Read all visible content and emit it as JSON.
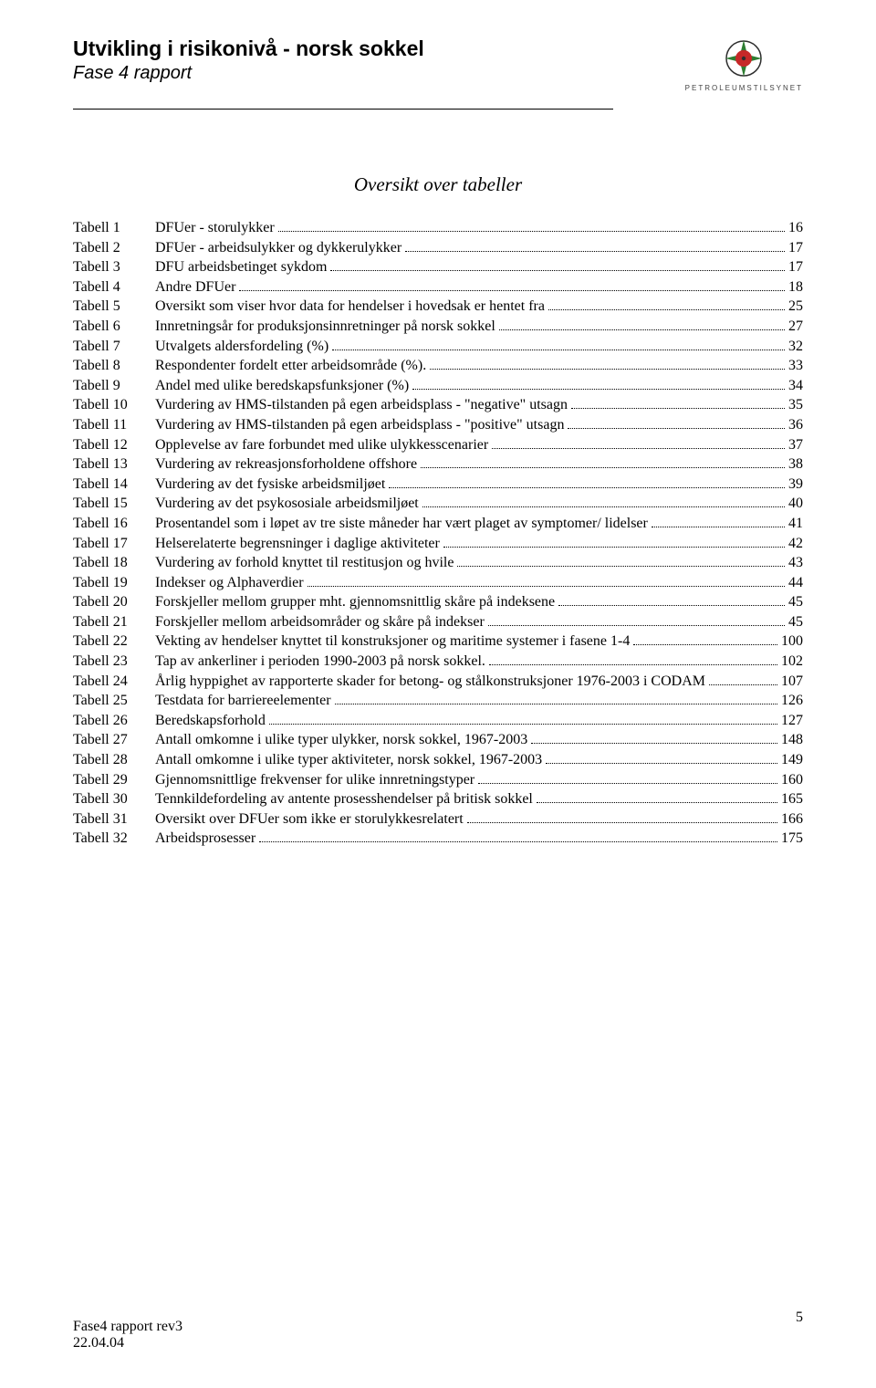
{
  "header": {
    "title": "Utvikling i risikonivå - norsk sokkel",
    "subtitle": "Fase 4 rapport",
    "logo_text": "PETROLEUMSTILSYNET",
    "logo_colors": {
      "center": "#c62828",
      "cross": "#2e7d32",
      "ring": "#2e2e2e"
    }
  },
  "toc": {
    "title": "Oversikt over tabeller",
    "entries": [
      {
        "label": "Tabell 1",
        "desc": "DFUer - storulykker",
        "page": "16"
      },
      {
        "label": "Tabell 2",
        "desc": "DFUer - arbeidsulykker og dykkerulykker",
        "page": "17"
      },
      {
        "label": "Tabell 3",
        "desc": "DFU arbeidsbetinget sykdom",
        "page": "17"
      },
      {
        "label": "Tabell 4",
        "desc": "Andre DFUer",
        "page": "18"
      },
      {
        "label": "Tabell 5",
        "desc": "Oversikt som viser hvor data for hendelser i hovedsak er hentet fra",
        "page": "25"
      },
      {
        "label": "Tabell 6",
        "desc": "Innretningsår for produksjonsinnretninger på norsk sokkel",
        "page": "27"
      },
      {
        "label": "Tabell 7",
        "desc": "Utvalgets aldersfordeling (%)",
        "page": "32"
      },
      {
        "label": "Tabell 8",
        "desc": "Respondenter fordelt etter arbeidsområde (%).",
        "page": "33"
      },
      {
        "label": "Tabell 9",
        "desc": "Andel med ulike beredskapsfunksjoner (%)",
        "page": "34"
      },
      {
        "label": "Tabell 10",
        "desc": "Vurdering av HMS-tilstanden på egen arbeidsplass - \"negative\" utsagn",
        "page": "35"
      },
      {
        "label": "Tabell 11",
        "desc": "Vurdering av HMS-tilstanden på egen arbeidsplass - \"positive\" utsagn",
        "page": "36"
      },
      {
        "label": "Tabell 12",
        "desc": "Opplevelse av fare forbundet med ulike ulykkesscenarier",
        "page": "37"
      },
      {
        "label": "Tabell 13",
        "desc": "Vurdering av rekreasjonsforholdene offshore",
        "page": "38"
      },
      {
        "label": "Tabell 14",
        "desc": "Vurdering av det fysiske arbeidsmiljøet",
        "page": "39"
      },
      {
        "label": "Tabell 15",
        "desc": "Vurdering av det psykososiale arbeidsmiljøet",
        "page": "40"
      },
      {
        "label": "Tabell 16",
        "desc": "Prosentandel som i løpet av tre siste måneder har vært plaget av symptomer/ lidelser",
        "page": "41"
      },
      {
        "label": "Tabell 17",
        "desc": "Helserelaterte begrensninger i daglige aktiviteter",
        "page": "42"
      },
      {
        "label": "Tabell 18",
        "desc": "Vurdering av forhold knyttet til restitusjon og hvile",
        "page": "43"
      },
      {
        "label": "Tabell 19",
        "desc": "Indekser og Alphaverdier",
        "page": "44"
      },
      {
        "label": "Tabell 20",
        "desc": "Forskjeller mellom grupper mht. gjennomsnittlig skåre på indeksene",
        "page": "45"
      },
      {
        "label": "Tabell 21",
        "desc": "Forskjeller mellom arbeidsområder og skåre på indekser",
        "page": "45"
      },
      {
        "label": "Tabell 22",
        "desc": "Vekting av hendelser knyttet til konstruksjoner og maritime systemer i fasene 1-4",
        "page": "100"
      },
      {
        "label": "Tabell 23",
        "desc": "Tap av ankerliner i perioden 1990-2003 på norsk sokkel.",
        "page": "102"
      },
      {
        "label": "Tabell 24",
        "desc": "Årlig hyppighet av rapporterte skader for betong- og stålkonstruksjoner 1976-2003 i CODAM",
        "page": "107"
      },
      {
        "label": "Tabell 25",
        "desc": "Testdata for barriereelementer",
        "page": "126"
      },
      {
        "label": "Tabell 26",
        "desc": "Beredskapsforhold",
        "page": "127"
      },
      {
        "label": "Tabell 27",
        "desc": "Antall omkomne i ulike typer ulykker, norsk sokkel, 1967-2003",
        "page": "148"
      },
      {
        "label": "Tabell 28",
        "desc": "Antall omkomne i ulike typer aktiviteter, norsk sokkel, 1967-2003",
        "page": "149"
      },
      {
        "label": "Tabell 29",
        "desc": "Gjennomsnittlige frekvenser for ulike innretningstyper",
        "page": "160"
      },
      {
        "label": "Tabell 30",
        "desc": "Tennkildefordeling av antente prosesshendelser på britisk sokkel",
        "page": "165"
      },
      {
        "label": "Tabell 31",
        "desc": "Oversikt over DFUer som ikke er storulykkesrelatert",
        "page": "166"
      },
      {
        "label": "Tabell 32",
        "desc": "Arbeidsprosesser",
        "page": "175"
      }
    ]
  },
  "footer": {
    "line1": "Fase4 rapport rev3",
    "line2": "22.04.04",
    "page_number": "5"
  }
}
